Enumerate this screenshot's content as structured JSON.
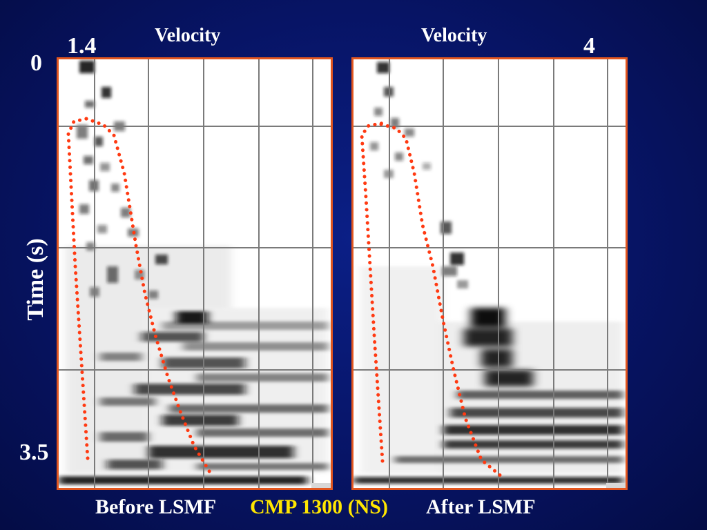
{
  "axis": {
    "time_label": "Time (s)",
    "time_top": "0",
    "time_bottom": "3.5",
    "velocity_min": "1.4",
    "velocity_max": "4"
  },
  "panels": [
    {
      "title": "Velocity",
      "caption": "Before LSMF"
    },
    {
      "title": "Velocity",
      "caption": "After LSMF"
    }
  ],
  "center_caption": "CMP 1300 (NS)",
  "colors": {
    "background": "#071465",
    "panel_border": "#e2561f",
    "picks": "#ff3a12",
    "center_caption": "#ffe600"
  }
}
